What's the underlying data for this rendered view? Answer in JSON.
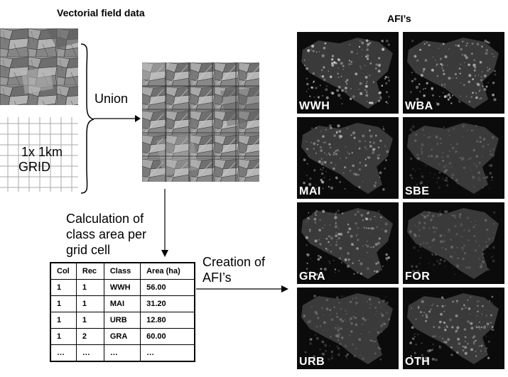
{
  "header": {
    "vector_title": "Vectorial field data",
    "afi_title": "AFI’s"
  },
  "labels": {
    "union": "Union",
    "grid_line1": "1x 1km",
    "grid_line2": "GRID",
    "calc_line1": "Calculation of",
    "calc_line2": "class area per",
    "calc_line3": "grid cell",
    "creation_line1": "Creation of",
    "creation_line2": "AFI’s"
  },
  "table": {
    "columns": [
      "Col",
      "Rec",
      "Class",
      "Area (ha)"
    ],
    "rows": [
      [
        "1",
        "1",
        "WWH",
        "56.00"
      ],
      [
        "1",
        "1",
        "MAI",
        "31.20"
      ],
      [
        "1",
        "1",
        "URB",
        "12.80"
      ],
      [
        "1",
        "2",
        "GRA",
        "60.00"
      ],
      [
        "…",
        "…",
        "…",
        "…"
      ]
    ]
  },
  "afi_panels": [
    {
      "label": "WWH",
      "icon": "crop-map-wwh"
    },
    {
      "label": "WBA",
      "icon": "crop-map-wba"
    },
    {
      "label": "MAI",
      "icon": "crop-map-mai"
    },
    {
      "label": "SBE",
      "icon": "crop-map-sbe"
    },
    {
      "label": "GRA",
      "icon": "crop-map-gra"
    },
    {
      "label": "FOR",
      "icon": "crop-map-for"
    },
    {
      "label": "URB",
      "icon": "crop-map-urb"
    },
    {
      "label": "OTH",
      "icon": "crop-map-oth"
    }
  ],
  "colors": {
    "panel_bg": "#0b0b0b",
    "parcel_fill": "#8c8c8c",
    "map_text": "#ffffff"
  }
}
